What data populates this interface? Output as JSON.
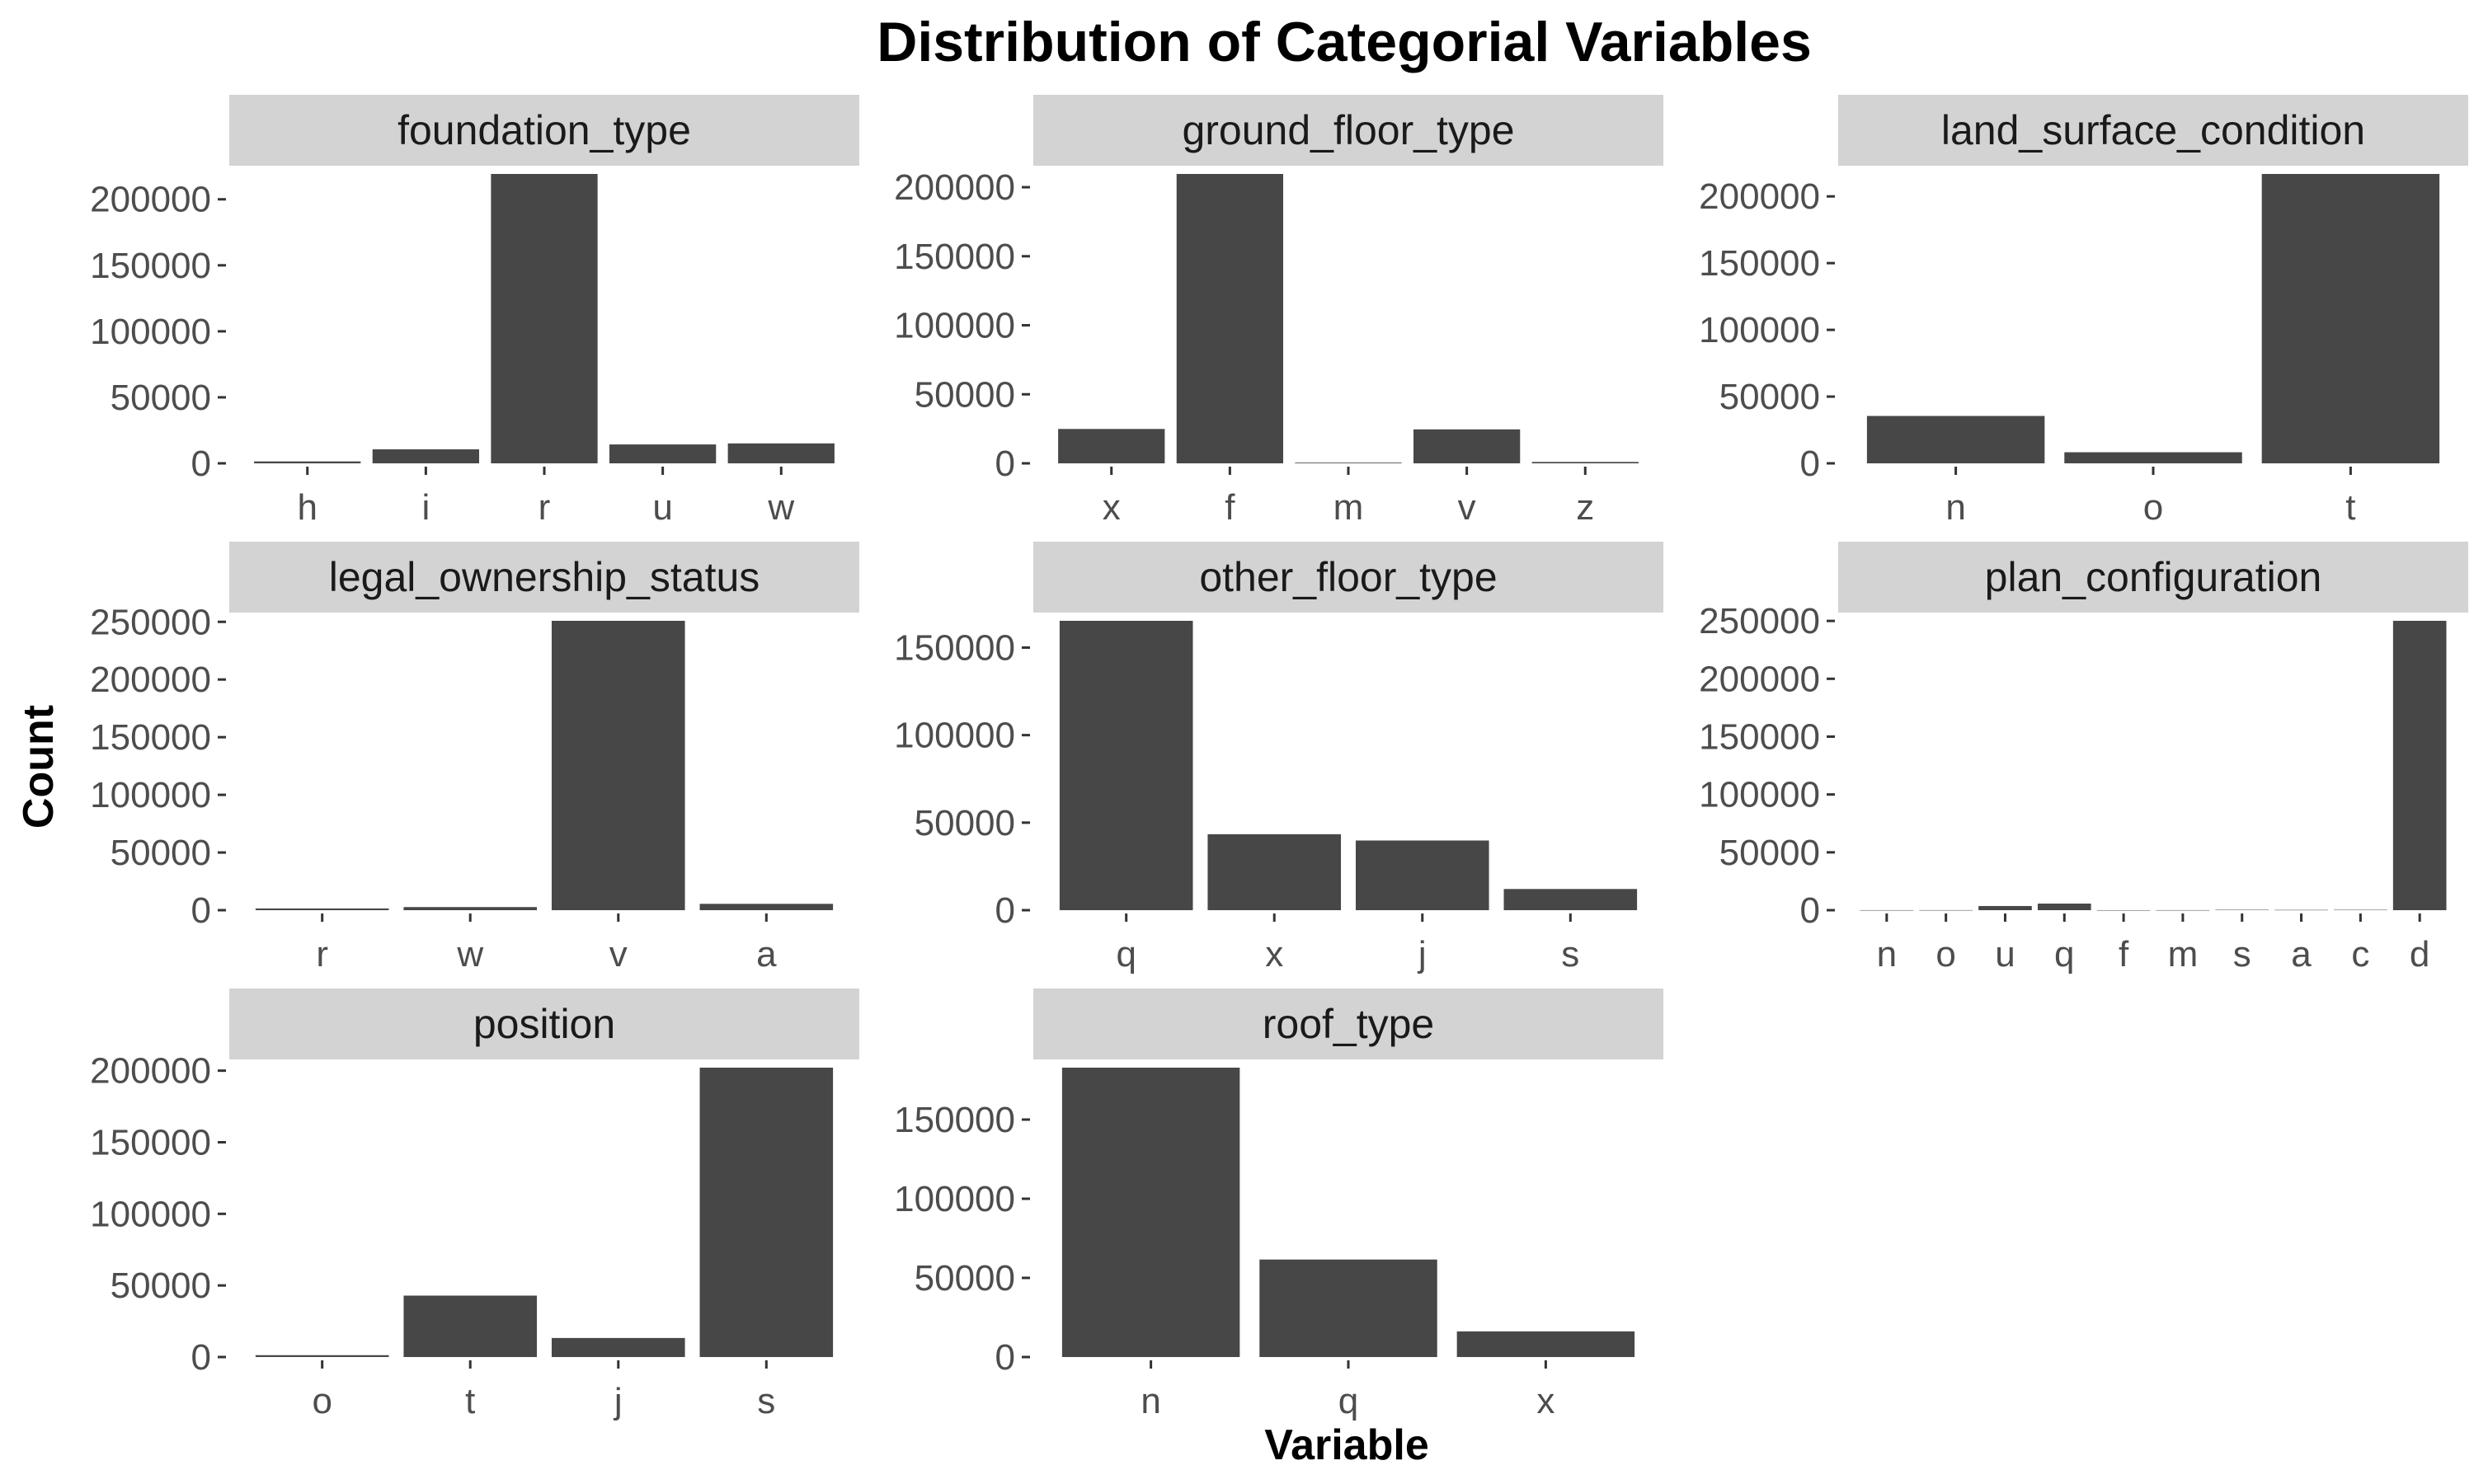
{
  "chart_data": {
    "type": "bar",
    "title": "Distribution of Categorial Variables",
    "xlabel": "Variable",
    "ylabel": "Count",
    "bar_color": "#474747",
    "strip_color": "#d3d3d3",
    "panels": [
      {
        "title": "foundation_type",
        "categories": [
          "h",
          "i",
          "r",
          "u",
          "w"
        ],
        "values": [
          1450,
          10600,
          219200,
          14300,
          15100
        ],
        "ylim": [
          0,
          219200
        ],
        "yticks": [
          0,
          50000,
          100000,
          150000,
          200000
        ],
        "ytick_labels": [
          "0",
          "50000",
          "100000",
          "150000",
          "200000"
        ]
      },
      {
        "title": "ground_floor_type",
        "categories": [
          "x",
          "f",
          "m",
          "v",
          "z"
        ],
        "values": [
          24900,
          209600,
          500,
          24600,
          1000
        ],
        "ylim": [
          0,
          209600
        ],
        "yticks": [
          0,
          50000,
          100000,
          150000,
          200000
        ],
        "ytick_labels": [
          "0",
          "50000",
          "100000",
          "150000",
          "200000"
        ]
      },
      {
        "title": "land_surface_condition",
        "categories": [
          "n",
          "o",
          "t"
        ],
        "values": [
          35500,
          8300,
          216800
        ],
        "ylim": [
          0,
          216800
        ],
        "yticks": [
          0,
          50000,
          100000,
          150000,
          200000
        ],
        "ytick_labels": [
          "0",
          "50000",
          "100000",
          "150000",
          "200000"
        ]
      },
      {
        "title": "legal_ownership_status",
        "categories": [
          "r",
          "w",
          "v",
          "a"
        ],
        "values": [
          1500,
          2700,
          250900,
          5500
        ],
        "ylim": [
          0,
          250900
        ],
        "yticks": [
          0,
          50000,
          100000,
          150000,
          200000,
          250000
        ],
        "ytick_labels": [
          "0",
          "50000",
          "100000",
          "150000",
          "200000",
          "250000"
        ]
      },
      {
        "title": "other_floor_type",
        "categories": [
          "q",
          "x",
          "j",
          "s"
        ],
        "values": [
          165300,
          43400,
          39800,
          12100
        ],
        "ylim": [
          0,
          165300
        ],
        "yticks": [
          0,
          50000,
          100000,
          150000
        ],
        "ytick_labels": [
          "0",
          "50000",
          "100000",
          "150000"
        ]
      },
      {
        "title": "plan_configuration",
        "categories": [
          "n",
          "o",
          "u",
          "q",
          "f",
          "m",
          "s",
          "a",
          "c",
          "d"
        ],
        "values": [
          40,
          80,
          3600,
          5700,
          20,
          50,
          350,
          250,
          330,
          250100
        ],
        "ylim": [
          0,
          250100
        ],
        "yticks": [
          0,
          50000,
          100000,
          150000,
          200000,
          250000
        ],
        "ytick_labels": [
          "0",
          "50000",
          "100000",
          "150000",
          "200000",
          "250000"
        ]
      },
      {
        "title": "position",
        "categories": [
          "o",
          "t",
          "j",
          "s"
        ],
        "values": [
          1300,
          42900,
          13300,
          202100
        ],
        "ylim": [
          0,
          202100
        ],
        "yticks": [
          0,
          50000,
          100000,
          150000,
          200000
        ],
        "ytick_labels": [
          "0",
          "50000",
          "100000",
          "150000",
          "200000"
        ]
      },
      {
        "title": "roof_type",
        "categories": [
          "n",
          "q",
          "x"
        ],
        "values": [
          182800,
          61600,
          16200
        ],
        "ylim": [
          0,
          182800
        ],
        "yticks": [
          0,
          50000,
          100000,
          150000
        ],
        "ytick_labels": [
          "0",
          "50000",
          "100000",
          "150000"
        ]
      }
    ]
  }
}
